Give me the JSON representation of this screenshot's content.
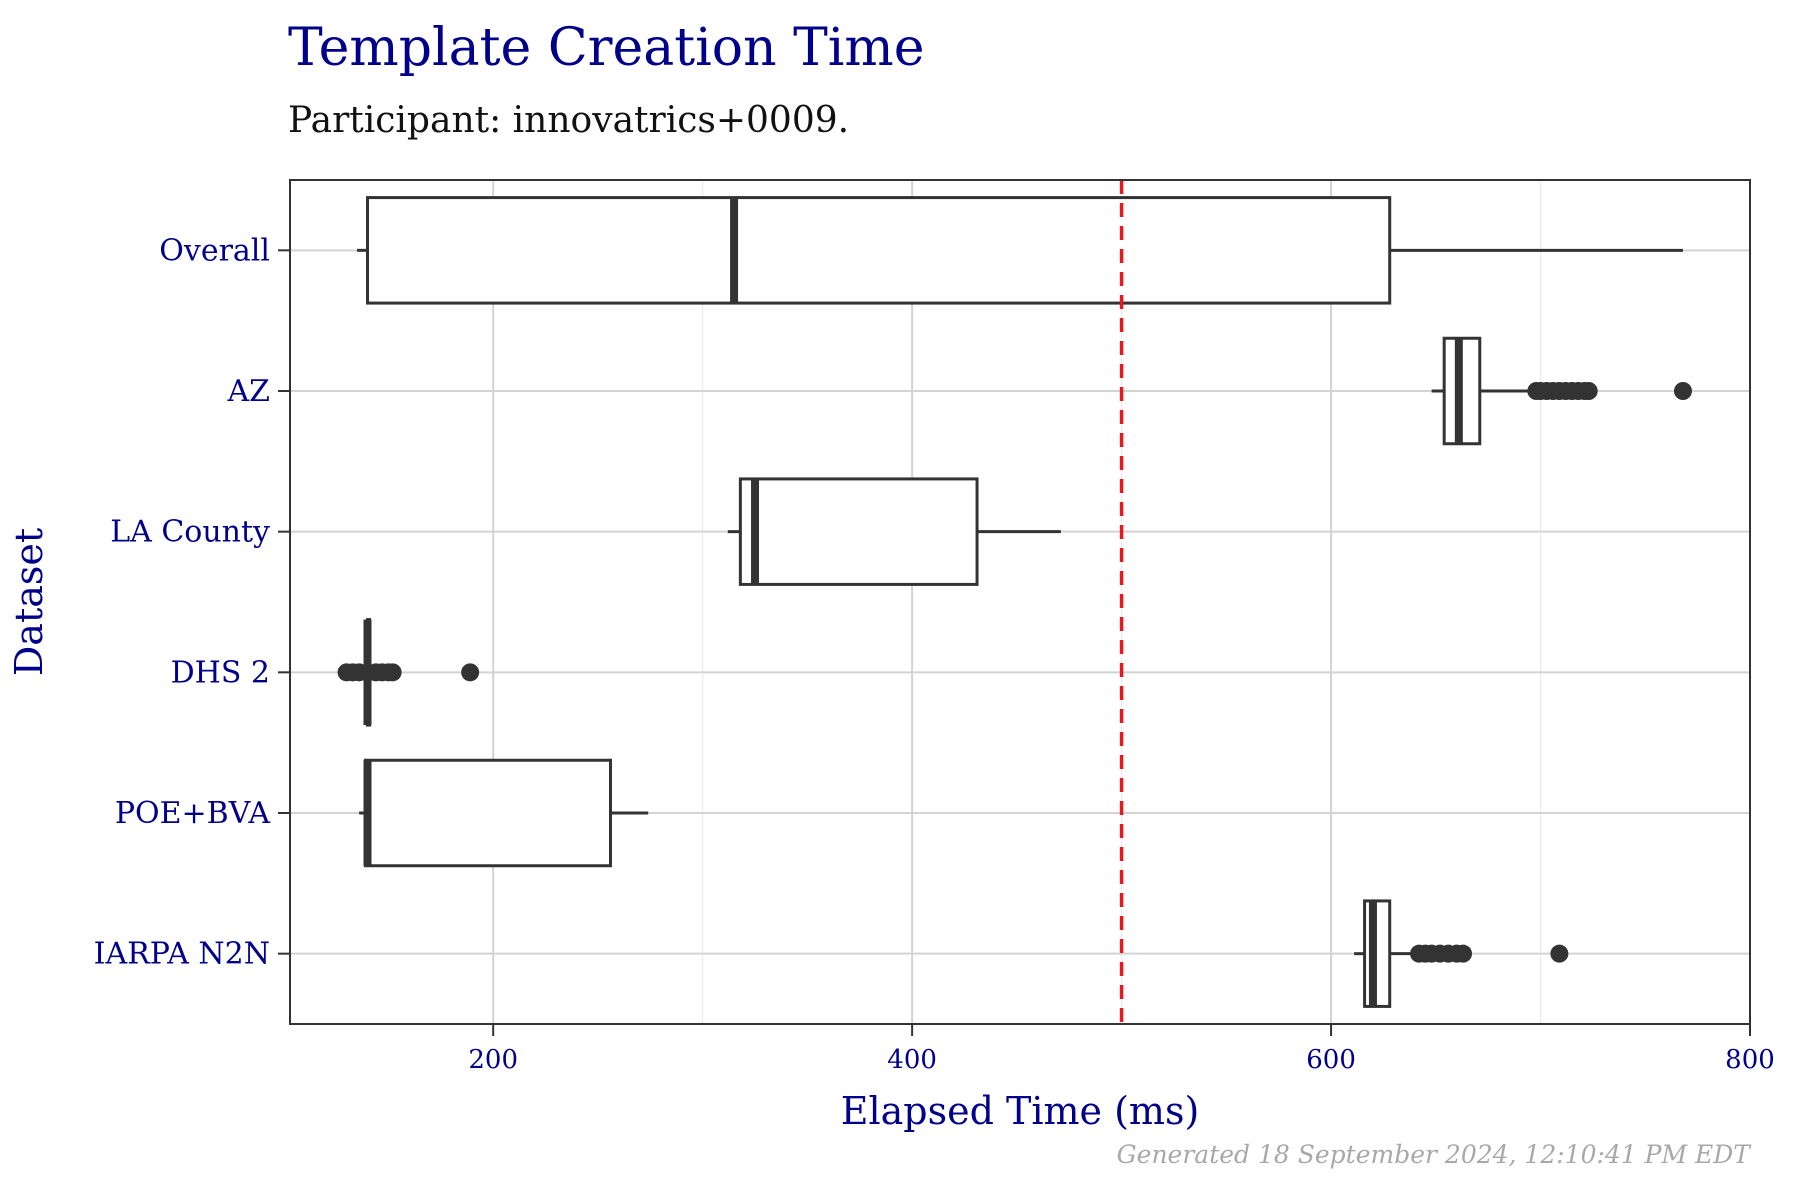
{
  "chart_data": {
    "type": "boxplot",
    "title": "Template Creation Time",
    "subtitle": "Participant: innovatrics+0009.",
    "xlabel": "Elapsed Time (ms)",
    "ylabel": "Dataset",
    "xlim": [
      103,
      800
    ],
    "x_ticks": [
      200,
      400,
      600,
      800
    ],
    "x_minor_ticks": [
      300,
      500,
      700
    ],
    "grid": true,
    "reference_line": {
      "value": 500,
      "color": "#e8191c",
      "style": "dashed"
    },
    "categories": [
      "Overall",
      "AZ",
      "LA County",
      "DHS 2",
      "POE+BVA",
      "IARPA N2N"
    ],
    "boxes": [
      {
        "name": "Overall",
        "min": 135,
        "q1": 140,
        "median": 315,
        "q3": 628,
        "max": 768,
        "outliers": []
      },
      {
        "name": "AZ",
        "min": 648,
        "q1": 654,
        "median": 661,
        "q3": 671,
        "max": 697,
        "outliers": [
          698,
          700,
          703,
          706,
          709,
          712,
          715,
          718,
          721,
          723,
          768
        ]
      },
      {
        "name": "LA County",
        "min": 312,
        "q1": 318,
        "median": 325,
        "q3": 431,
        "max": 471,
        "outliers": []
      },
      {
        "name": "DHS 2",
        "min": 138,
        "q1": 140,
        "median": 140,
        "q3": 141,
        "max": 142,
        "outliers": [
          130,
          133,
          136,
          144,
          147,
          150,
          152,
          189
        ]
      },
      {
        "name": "POE+BVA",
        "min": 136,
        "q1": 139,
        "median": 140,
        "q3": 256,
        "max": 274,
        "outliers": []
      },
      {
        "name": "IARPA N2N",
        "min": 611,
        "q1": 616,
        "median": 620,
        "q3": 628,
        "max": 640,
        "outliers": [
          642,
          645,
          648,
          652,
          656,
          660,
          663,
          709
        ]
      }
    ]
  },
  "footer": "Generated 18 September 2024, 12:10:41 PM EDT"
}
